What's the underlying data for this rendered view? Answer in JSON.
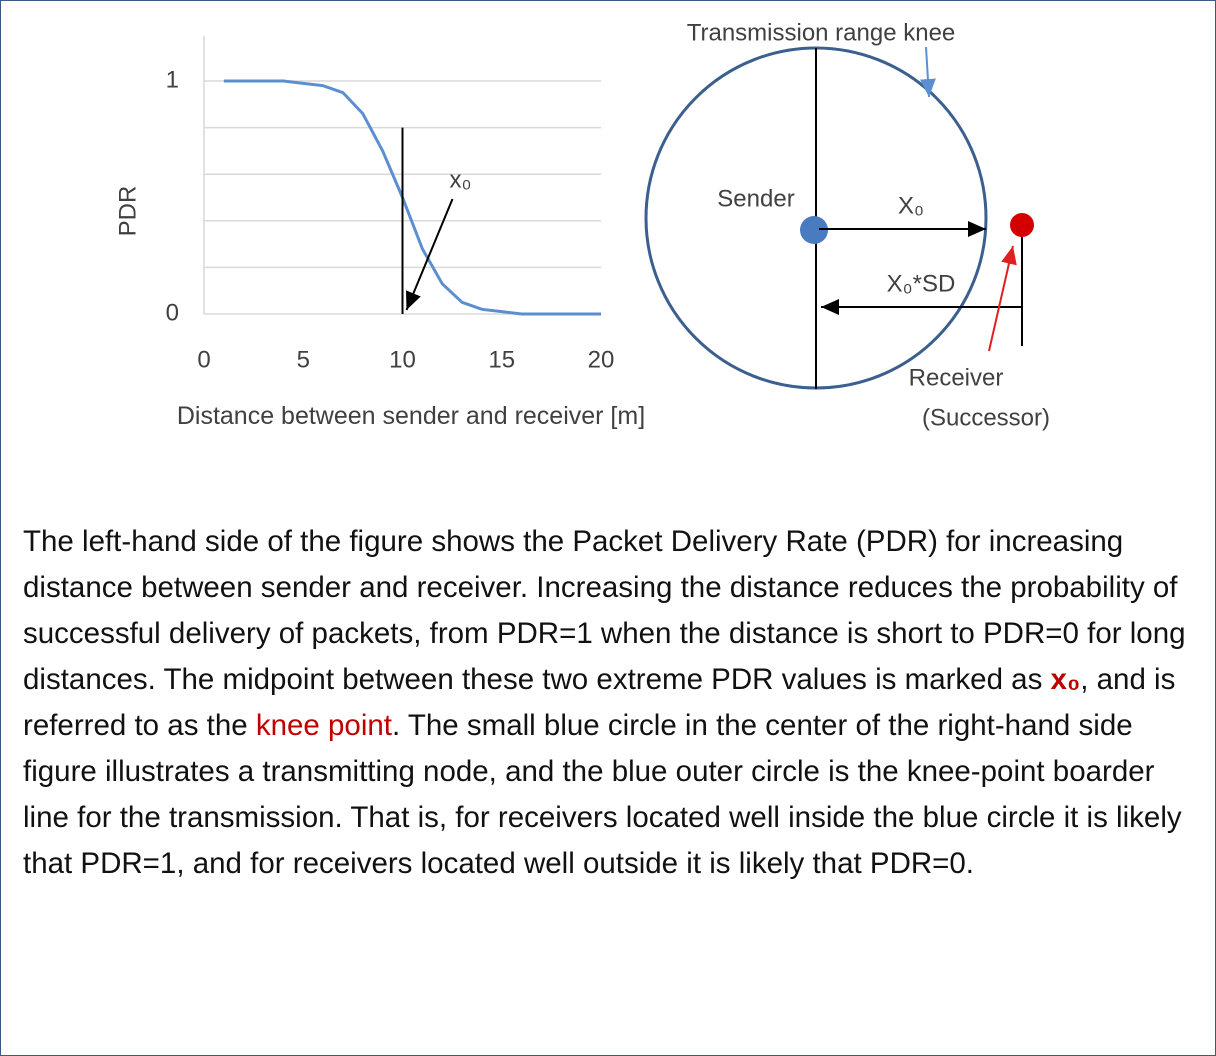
{
  "chart_data": {
    "type": "line",
    "y_label": "PDR",
    "x_label": "Distance between sender and receiver [m]",
    "x": [
      1,
      2,
      3,
      4,
      5,
      6,
      7,
      8,
      9,
      10,
      11,
      12,
      13,
      14,
      15,
      16,
      17,
      18,
      19,
      20
    ],
    "series": [
      {
        "color": "#5b8fd0",
        "values": [
          1,
          1,
          1,
          1,
          0.99,
          0.98,
          0.95,
          0.86,
          0.7,
          0.5,
          0.28,
          0.13,
          0.05,
          0.02,
          0.01,
          0,
          0,
          0,
          0,
          0
        ]
      }
    ],
    "xlim": [
      0,
      20
    ],
    "xticks": [
      0,
      5,
      10,
      15,
      20
    ],
    "ylim": [
      0,
      1
    ],
    "yticks": [
      0,
      1
    ],
    "grid_lines": [
      0,
      0.2,
      0.4,
      0.6,
      0.8,
      1
    ],
    "knee": {
      "x": 10,
      "top": 0.8,
      "label": "x₀"
    }
  },
  "diagram": {
    "top_label": "Transmission range knee",
    "sender": "Sender",
    "x0": "X₀",
    "x0sd": "X₀*SD",
    "receiver": "Receiver",
    "successor": "(Successor)"
  },
  "caption": [
    "The left-hand side of the figure shows the Packet Delivery Rate (PDR) for increasing distance between sender and receiver. Increasing the distance reduces the probability of successful delivery of packets, from PDR=1 when the distance is short to PDR=0 for long distances. The midpoint between these two extreme PDR values is marked as ",
    "x₀",
    ", and is referred to as the ",
    "knee point",
    ". The small blue circle in the center of the right-hand side figure illustrates a transmitting node, and the blue outer circle is the knee-point boarder line for the transmission. That is, for receivers located well inside the blue circle it is likely that PDR=1, and for receivers located well outside it is likely that PDR=0."
  ]
}
